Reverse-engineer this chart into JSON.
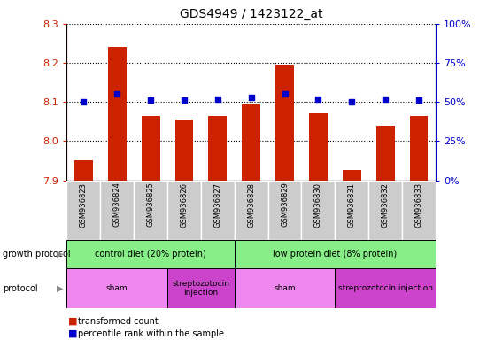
{
  "title": "GDS4949 / 1423122_at",
  "samples": [
    "GSM936823",
    "GSM936824",
    "GSM936825",
    "GSM936826",
    "GSM936827",
    "GSM936828",
    "GSM936829",
    "GSM936830",
    "GSM936831",
    "GSM936832",
    "GSM936833"
  ],
  "bar_values": [
    7.95,
    8.24,
    8.065,
    8.055,
    8.065,
    8.095,
    8.195,
    8.07,
    7.925,
    8.04,
    8.065
  ],
  "dot_values": [
    50,
    55,
    51,
    51,
    52,
    53,
    55,
    52,
    50,
    52,
    51
  ],
  "ylim_left": [
    7.9,
    8.3
  ],
  "ylim_right": [
    0,
    100
  ],
  "yticks_left": [
    7.9,
    8.0,
    8.1,
    8.2,
    8.3
  ],
  "yticks_right": [
    0,
    25,
    50,
    75,
    100
  ],
  "bar_color": "#cc2200",
  "dot_color": "#0000cc",
  "bar_bottom": 7.9,
  "growth_protocol_labels": [
    "control diet (20% protein)",
    "low protein diet (8% protein)"
  ],
  "growth_protocol_ranges": [
    [
      0,
      4
    ],
    [
      5,
      10
    ]
  ],
  "growth_protocol_color": "#88ee88",
  "protocol_labels": [
    "sham",
    "streptozotocin\ninjection",
    "sham",
    "streptozotocin injection"
  ],
  "protocol_ranges": [
    [
      0,
      2
    ],
    [
      3,
      4
    ],
    [
      5,
      7
    ],
    [
      8,
      10
    ]
  ],
  "protocol_color_sham": "#ee88ee",
  "protocol_color_strep": "#cc44cc",
  "tick_bg_color": "#cccccc",
  "legend_red_label": "transformed count",
  "legend_blue_label": "percentile rank within the sample",
  "arrow_color": "#888888"
}
